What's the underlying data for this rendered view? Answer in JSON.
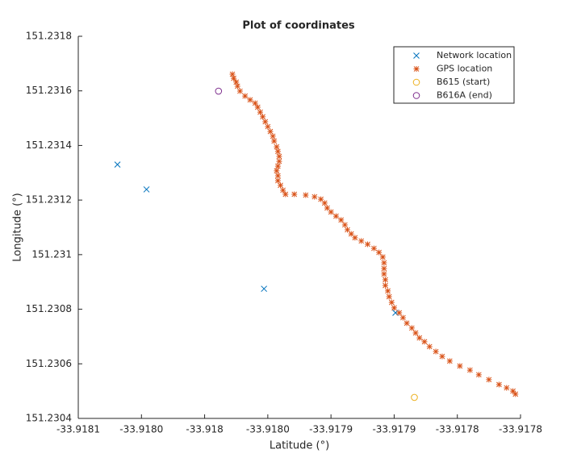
{
  "chart_data": {
    "type": "scatter",
    "title": "Plot of coordinates",
    "xlabel": "Latitude (°)",
    "ylabel": "Longitude (°)",
    "xlim": [
      -33.9181,
      -33.91775
    ],
    "xticks": [
      -33.9181,
      {
        "value": -33.91805,
        "label": "-33.9180"
      },
      -33.918,
      {
        "value": -33.91795,
        "label": "-33.9180"
      },
      -33.9179,
      {
        "value": -33.91785,
        "label": "-33.9179"
      },
      -33.9178,
      {
        "value": -33.91775,
        "label": "-33.9178"
      }
    ],
    "ylim": [
      151.2304,
      151.2318
    ],
    "yticks": [
      151.2304,
      151.2306,
      151.2308,
      151.231,
      151.2312,
      151.2314,
      151.2316,
      151.2318
    ],
    "legend": "northeast",
    "series": [
      {
        "name": "Network location",
        "color": "#0072BD",
        "marker": "x",
        "x": [
          -33.918069,
          -33.918046,
          -33.917953,
          -33.917849
        ],
        "values": [
          151.23133,
          151.231239,
          151.230875,
          151.230787
        ]
      },
      {
        "name": "GPS location",
        "color": "#D95319",
        "marker": "*",
        "x": [
          -33.917978,
          -33.917977,
          -33.917975,
          -33.917974,
          -33.917972,
          -33.917968,
          -33.917964,
          -33.91796,
          -33.917958,
          -33.917956,
          -33.917954,
          -33.917952,
          -33.91795,
          -33.917948,
          -33.917946,
          -33.917945,
          -33.917943,
          -33.917942,
          -33.917941,
          -33.917941,
          -33.917942,
          -33.917943,
          -33.917942,
          -33.917942,
          -33.91794,
          -33.917938,
          -33.917936,
          -33.917929,
          -33.91792,
          -33.917913,
          -33.917908,
          -33.917905,
          -33.917903,
          -33.9179,
          -33.917896,
          -33.917892,
          -33.917889,
          -33.917887,
          -33.917884,
          -33.917881,
          -33.917876,
          -33.917871,
          -33.917866,
          -33.917862,
          -33.917859,
          -33.917858,
          -33.917858,
          -33.917858,
          -33.917857,
          -33.917857,
          -33.917855,
          -33.917854,
          -33.917852,
          -33.91785,
          -33.917846,
          -33.917843,
          -33.91784,
          -33.917836,
          -33.917833,
          -33.91783,
          -33.917826,
          -33.917822,
          -33.917817,
          -33.917812,
          -33.917806,
          -33.917798,
          -33.91779,
          -33.917783,
          -33.917775,
          -33.917767,
          -33.917761,
          -33.917756,
          -33.917754
        ],
        "values": [
          151.231661,
          151.231646,
          151.231632,
          151.231617,
          151.231599,
          151.231581,
          151.231567,
          151.231555,
          151.23154,
          151.231522,
          151.231505,
          151.231487,
          151.231469,
          151.231451,
          151.231434,
          151.231416,
          151.231395,
          151.231378,
          151.23136,
          151.231342,
          151.231324,
          151.231307,
          151.231289,
          151.231271,
          151.231254,
          151.231236,
          151.231221,
          151.231221,
          151.231218,
          151.231212,
          151.231203,
          151.231189,
          151.231171,
          151.231156,
          151.231141,
          151.231127,
          151.231109,
          151.231091,
          151.231076,
          151.231062,
          151.23105,
          151.231038,
          151.231023,
          151.231008,
          151.230991,
          151.23097,
          151.230949,
          151.230929,
          151.230908,
          151.230887,
          151.230867,
          151.230846,
          151.230825,
          151.230805,
          151.230787,
          151.230769,
          151.230749,
          151.230731,
          151.230713,
          151.230695,
          151.230681,
          151.230663,
          151.230645,
          151.230627,
          151.23061,
          151.230592,
          151.230577,
          151.23056,
          151.230542,
          151.230524,
          151.230512,
          151.2305,
          151.230489
        ]
      },
      {
        "name": "B615 (start)",
        "color": "#EDB120",
        "marker": "o",
        "x": [
          -33.917834
        ],
        "values": [
          151.230477
        ]
      },
      {
        "name": "B616A (end)",
        "color": "#7E2F8E",
        "marker": "o",
        "x": [
          -33.917989
        ],
        "values": [
          151.231599
        ]
      }
    ]
  }
}
